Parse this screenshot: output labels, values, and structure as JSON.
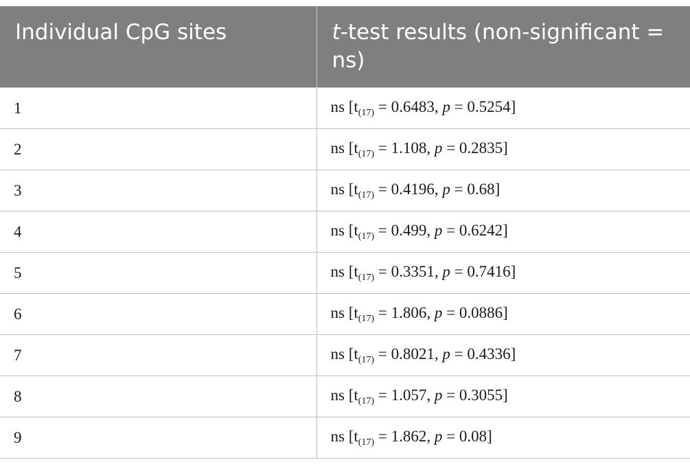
{
  "table": {
    "headers": {
      "col1": "Individual CpG sites",
      "col2_italic": "t",
      "col2_rest": "-test results (non-significant = ns)"
    },
    "rows": [
      {
        "site": "1",
        "label": "ns",
        "df": "(17)",
        "t": "0.6483",
        "p": "0.5254"
      },
      {
        "site": "2",
        "label": "ns",
        "df": "(17)",
        "t": "1.108",
        "p": "0.2835"
      },
      {
        "site": "3",
        "label": "ns",
        "df": "(17)",
        "t": "0.4196",
        "p": "0.68"
      },
      {
        "site": "4",
        "label": "ns",
        "df": "(17)",
        "t": "0.499",
        "p": "0.6242"
      },
      {
        "site": "5",
        "label": "ns",
        "df": "(17)",
        "t": "0.3351",
        "p": "0.7416"
      },
      {
        "site": "6",
        "label": "ns",
        "df": "(17)",
        "t": "1.806",
        "p": "0.0886"
      },
      {
        "site": "7",
        "label": "ns",
        "df": "(17)",
        "t": "0.8021",
        "p": "0.4336"
      },
      {
        "site": "8",
        "label": "ns",
        "df": "(17)",
        "t": "1.057",
        "p": "0.3055"
      },
      {
        "site": "9",
        "label": "ns",
        "df": "(17)",
        "t": "1.862",
        "p": "0.08"
      }
    ]
  }
}
